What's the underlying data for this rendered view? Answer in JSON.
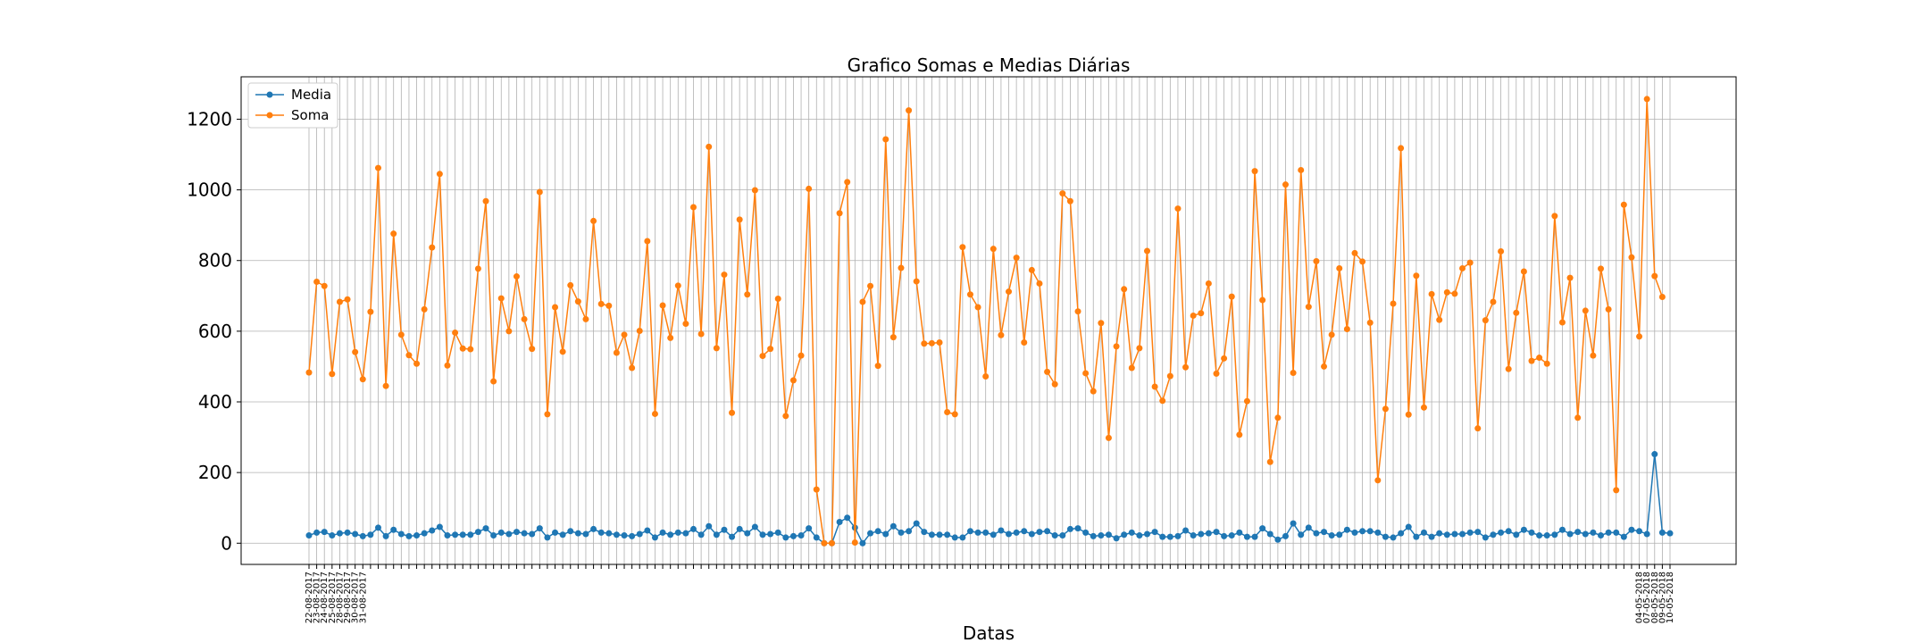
{
  "chart_data": {
    "type": "line",
    "title": "Grafico Somas e Medias Diárias",
    "xlabel": "Datas",
    "ylabel": "",
    "ylim": [
      -60,
      1320
    ],
    "yticks": [
      0,
      200,
      400,
      600,
      800,
      1000,
      1200
    ],
    "grid": true,
    "legend_position": "upper-left",
    "x_first_dates": [
      "22-08-2017",
      "23-08-2017",
      "24-08-2017",
      "25-08-2017",
      "28-08-2017",
      "29-08-2017",
      "30-08-2017",
      "31-08-2017"
    ],
    "x_last_dates": [
      "04-05-2018",
      "07-05-2018",
      "08-05-2018",
      "09-05-2018",
      "10-05-2018"
    ],
    "series": [
      {
        "name": "Media",
        "color": "#1f77b4",
        "values": [
          22,
          30,
          32,
          22,
          28,
          30,
          26,
          20,
          24,
          44,
          20,
          38,
          26,
          20,
          22,
          28,
          36,
          46,
          22,
          24,
          24,
          24,
          32,
          42,
          22,
          30,
          26,
          32,
          28,
          26,
          42,
          16,
          30,
          24,
          34,
          28,
          26,
          40,
          30,
          28,
          24,
          22,
          20,
          26,
          36,
          16,
          30,
          24,
          30,
          28,
          40,
          24,
          48,
          24,
          38,
          18,
          40,
          28,
          46,
          24,
          26,
          30,
          16,
          20,
          22,
          42,
          16,
          0,
          0,
          60,
          72,
          44,
          0,
          28,
          34,
          26,
          48,
          30,
          34,
          56,
          32,
          24,
          24,
          24,
          16,
          16,
          34,
          30,
          30,
          24,
          36,
          26,
          30,
          34,
          26,
          32,
          34,
          22,
          22,
          40,
          42,
          30,
          20,
          22,
          24,
          14,
          24,
          30,
          22,
          26,
          32,
          18,
          18,
          20,
          36,
          22,
          26,
          28,
          32,
          20,
          22,
          30,
          18,
          18,
          42,
          26,
          10,
          20,
          56,
          24,
          44,
          28,
          32,
          22,
          24,
          38,
          30,
          34,
          34,
          30,
          18,
          16,
          28,
          46,
          18,
          30,
          18,
          28,
          24,
          26,
          26,
          30,
          32,
          16,
          24,
          30,
          34,
          24,
          38,
          30,
          22,
          22,
          24,
          38,
          26,
          32,
          26,
          30,
          22,
          30,
          30,
          18,
          38,
          34,
          26,
          252,
          30,
          28
        ]
      },
      {
        "name": "Soma",
        "color": "#ff7f0e",
        "values": [
          483,
          740,
          728,
          479,
          683,
          690,
          541,
          464,
          655,
          1062,
          445,
          876,
          590,
          532,
          508,
          662,
          837,
          1045,
          503,
          596,
          551,
          549,
          777,
          968,
          458,
          693,
          600,
          755,
          634,
          550,
          994,
          365,
          668,
          542,
          730,
          684,
          634,
          912,
          677,
          672,
          539,
          590,
          496,
          601,
          855,
          366,
          673,
          581,
          729,
          621,
          951,
          592,
          1122,
          552,
          760,
          369,
          916,
          704,
          999,
          530,
          550,
          692,
          360,
          461,
          531,
          1003,
          152,
          0,
          0,
          934,
          1022,
          2,
          683,
          728,
          502,
          1143,
          583,
          779,
          1225,
          741,
          565,
          566,
          568,
          371,
          365,
          838,
          704,
          668,
          472,
          833,
          589,
          712,
          808,
          568,
          773,
          735,
          485,
          450,
          990,
          968,
          656,
          481,
          430,
          623,
          298,
          557,
          719,
          496,
          552,
          827,
          443,
          403,
          473,
          947,
          498,
          644,
          651,
          735,
          480,
          523,
          698,
          307,
          402,
          1053,
          688,
          230,
          355,
          1015,
          482,
          1056,
          669,
          798,
          500,
          590,
          778,
          606,
          821,
          797,
          624,
          178,
          380,
          678,
          1118,
          364,
          757,
          384,
          705,
          632,
          710,
          706,
          778,
          794,
          325,
          631,
          683,
          826,
          493,
          652,
          769,
          516,
          525,
          508,
          926,
          625,
          751,
          355,
          658,
          531,
          777,
          662,
          150,
          958,
          809,
          585,
          1257,
          756,
          697
        ]
      }
    ]
  }
}
